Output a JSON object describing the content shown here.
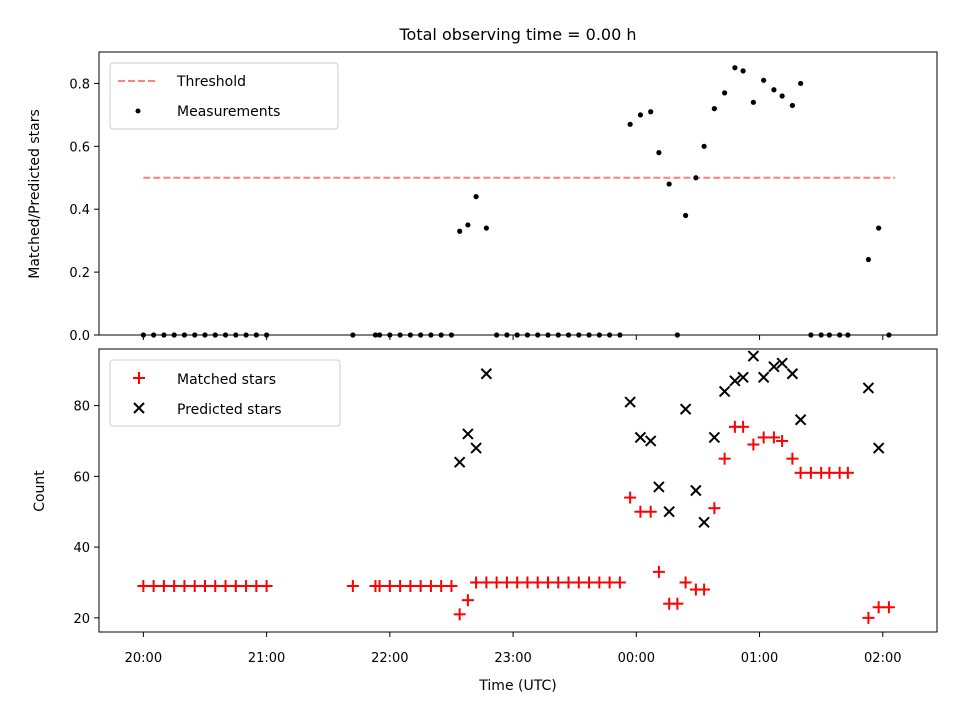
{
  "chart_data": [
    {
      "type": "scatter",
      "title": "Total observing time = 0.00 h",
      "ylabel": "Matched/Predicted stars",
      "ylim": [
        0,
        0.9
      ],
      "yticks": [
        0.0,
        0.2,
        0.4,
        0.6,
        0.8
      ],
      "ytick_labels": [
        "0.0",
        "0.2",
        "0.4",
        "0.6",
        "0.8"
      ],
      "xlim_hours": [
        19.64,
        26.44
      ],
      "legend_position": "upper-left",
      "threshold": {
        "name": "Threshold",
        "value": 0.5,
        "x_start": "20:00",
        "x_end": "02:06",
        "color": "#ff7f7f",
        "style": "dashed"
      },
      "series": [
        {
          "name": "Measurements",
          "color": "#000000",
          "marker": "dot",
          "points": [
            [
              "20:00",
              0.0
            ],
            [
              "20:05",
              0.0
            ],
            [
              "20:10",
              0.0
            ],
            [
              "20:15",
              0.0
            ],
            [
              "20:20",
              0.0
            ],
            [
              "20:25",
              0.0
            ],
            [
              "20:30",
              0.0
            ],
            [
              "20:35",
              0.0
            ],
            [
              "20:40",
              0.0
            ],
            [
              "20:45",
              0.0
            ],
            [
              "20:50",
              0.0
            ],
            [
              "20:55",
              0.0
            ],
            [
              "21:00",
              0.0
            ],
            [
              "21:42",
              0.0
            ],
            [
              "21:53",
              0.0
            ],
            [
              "21:55",
              0.0
            ],
            [
              "22:00",
              0.0
            ],
            [
              "22:05",
              0.0
            ],
            [
              "22:10",
              0.0
            ],
            [
              "22:15",
              0.0
            ],
            [
              "22:20",
              0.0
            ],
            [
              "22:25",
              0.0
            ],
            [
              "22:30",
              0.0
            ],
            [
              "22:34",
              0.33
            ],
            [
              "22:38",
              0.35
            ],
            [
              "22:42",
              0.44
            ],
            [
              "22:47",
              0.34
            ],
            [
              "22:52",
              0.0
            ],
            [
              "22:57",
              0.0
            ],
            [
              "23:02",
              0.0
            ],
            [
              "23:07",
              0.0
            ],
            [
              "23:12",
              0.0
            ],
            [
              "23:17",
              0.0
            ],
            [
              "23:22",
              0.0
            ],
            [
              "23:27",
              0.0
            ],
            [
              "23:32",
              0.0
            ],
            [
              "23:37",
              0.0
            ],
            [
              "23:42",
              0.0
            ],
            [
              "23:47",
              0.0
            ],
            [
              "23:52",
              0.0
            ],
            [
              "23:57",
              0.67
            ],
            [
              "00:02",
              0.7
            ],
            [
              "00:07",
              0.71
            ],
            [
              "00:11",
              0.58
            ],
            [
              "00:16",
              0.48
            ],
            [
              "00:20",
              0.0
            ],
            [
              "00:24",
              0.38
            ],
            [
              "00:29",
              0.5
            ],
            [
              "00:33",
              0.6
            ],
            [
              "00:38",
              0.72
            ],
            [
              "00:43",
              0.77
            ],
            [
              "00:48",
              0.85
            ],
            [
              "00:52",
              0.84
            ],
            [
              "00:57",
              0.74
            ],
            [
              "01:02",
              0.81
            ],
            [
              "01:07",
              0.78
            ],
            [
              "01:11",
              0.76
            ],
            [
              "01:16",
              0.73
            ],
            [
              "01:20",
              0.8
            ],
            [
              "01:25",
              0.0
            ],
            [
              "01:30",
              0.0
            ],
            [
              "01:34",
              0.0
            ],
            [
              "01:39",
              0.0
            ],
            [
              "01:43",
              0.0
            ],
            [
              "01:53",
              0.24
            ],
            [
              "01:58",
              0.34
            ],
            [
              "02:03",
              0.0
            ]
          ]
        }
      ]
    },
    {
      "type": "scatter",
      "xlabel": "Time (UTC)",
      "ylabel": "Count",
      "ylim": [
        16,
        96
      ],
      "yticks": [
        20,
        40,
        60,
        80
      ],
      "ytick_labels": [
        "20",
        "40",
        "60",
        "80"
      ],
      "xlim_hours": [
        19.64,
        26.44
      ],
      "xticks": [
        "20:00",
        "21:00",
        "22:00",
        "23:00",
        "00:00",
        "01:00",
        "02:00"
      ],
      "legend_position": "upper-left",
      "series": [
        {
          "name": "Matched stars",
          "color": "#ff0000",
          "marker": "plus",
          "points": [
            [
              "20:00",
              29
            ],
            [
              "20:05",
              29
            ],
            [
              "20:10",
              29
            ],
            [
              "20:15",
              29
            ],
            [
              "20:20",
              29
            ],
            [
              "20:25",
              29
            ],
            [
              "20:30",
              29
            ],
            [
              "20:35",
              29
            ],
            [
              "20:40",
              29
            ],
            [
              "20:45",
              29
            ],
            [
              "20:50",
              29
            ],
            [
              "20:55",
              29
            ],
            [
              "21:00",
              29
            ],
            [
              "21:42",
              29
            ],
            [
              "21:53",
              29
            ],
            [
              "21:55",
              29
            ],
            [
              "22:00",
              29
            ],
            [
              "22:05",
              29
            ],
            [
              "22:10",
              29
            ],
            [
              "22:15",
              29
            ],
            [
              "22:20",
              29
            ],
            [
              "22:25",
              29
            ],
            [
              "22:30",
              29
            ],
            [
              "22:34",
              21
            ],
            [
              "22:38",
              25
            ],
            [
              "22:42",
              30
            ],
            [
              "22:47",
              30
            ],
            [
              "22:52",
              30
            ],
            [
              "22:57",
              30
            ],
            [
              "23:02",
              30
            ],
            [
              "23:07",
              30
            ],
            [
              "23:12",
              30
            ],
            [
              "23:17",
              30
            ],
            [
              "23:22",
              30
            ],
            [
              "23:27",
              30
            ],
            [
              "23:32",
              30
            ],
            [
              "23:37",
              30
            ],
            [
              "23:42",
              30
            ],
            [
              "23:47",
              30
            ],
            [
              "23:52",
              30
            ],
            [
              "23:57",
              54
            ],
            [
              "00:02",
              50
            ],
            [
              "00:07",
              50
            ],
            [
              "00:11",
              33
            ],
            [
              "00:16",
              24
            ],
            [
              "00:20",
              24
            ],
            [
              "00:24",
              30
            ],
            [
              "00:29",
              28
            ],
            [
              "00:33",
              28
            ],
            [
              "00:38",
              51
            ],
            [
              "00:43",
              65
            ],
            [
              "00:48",
              74
            ],
            [
              "00:52",
              74
            ],
            [
              "00:57",
              69
            ],
            [
              "01:02",
              71
            ],
            [
              "01:07",
              71
            ],
            [
              "01:11",
              70
            ],
            [
              "01:16",
              65
            ],
            [
              "01:20",
              61
            ],
            [
              "01:25",
              61
            ],
            [
              "01:30",
              61
            ],
            [
              "01:34",
              61
            ],
            [
              "01:39",
              61
            ],
            [
              "01:43",
              61
            ],
            [
              "01:53",
              20
            ],
            [
              "01:58",
              23
            ],
            [
              "02:03",
              23
            ]
          ]
        },
        {
          "name": "Predicted stars",
          "color": "#000000",
          "marker": "x",
          "points": [
            [
              "22:34",
              64
            ],
            [
              "22:38",
              72
            ],
            [
              "22:42",
              68
            ],
            [
              "22:47",
              89
            ],
            [
              "23:57",
              81
            ],
            [
              "00:02",
              71
            ],
            [
              "00:07",
              70
            ],
            [
              "00:11",
              57
            ],
            [
              "00:16",
              50
            ],
            [
              "00:24",
              79
            ],
            [
              "00:29",
              56
            ],
            [
              "00:33",
              47
            ],
            [
              "00:38",
              71
            ],
            [
              "00:43",
              84
            ],
            [
              "00:48",
              87
            ],
            [
              "00:52",
              88
            ],
            [
              "00:57",
              94
            ],
            [
              "01:02",
              88
            ],
            [
              "01:07",
              91
            ],
            [
              "01:11",
              92
            ],
            [
              "01:16",
              89
            ],
            [
              "01:20",
              76
            ],
            [
              "01:53",
              85
            ],
            [
              "01:58",
              68
            ]
          ]
        }
      ]
    }
  ]
}
